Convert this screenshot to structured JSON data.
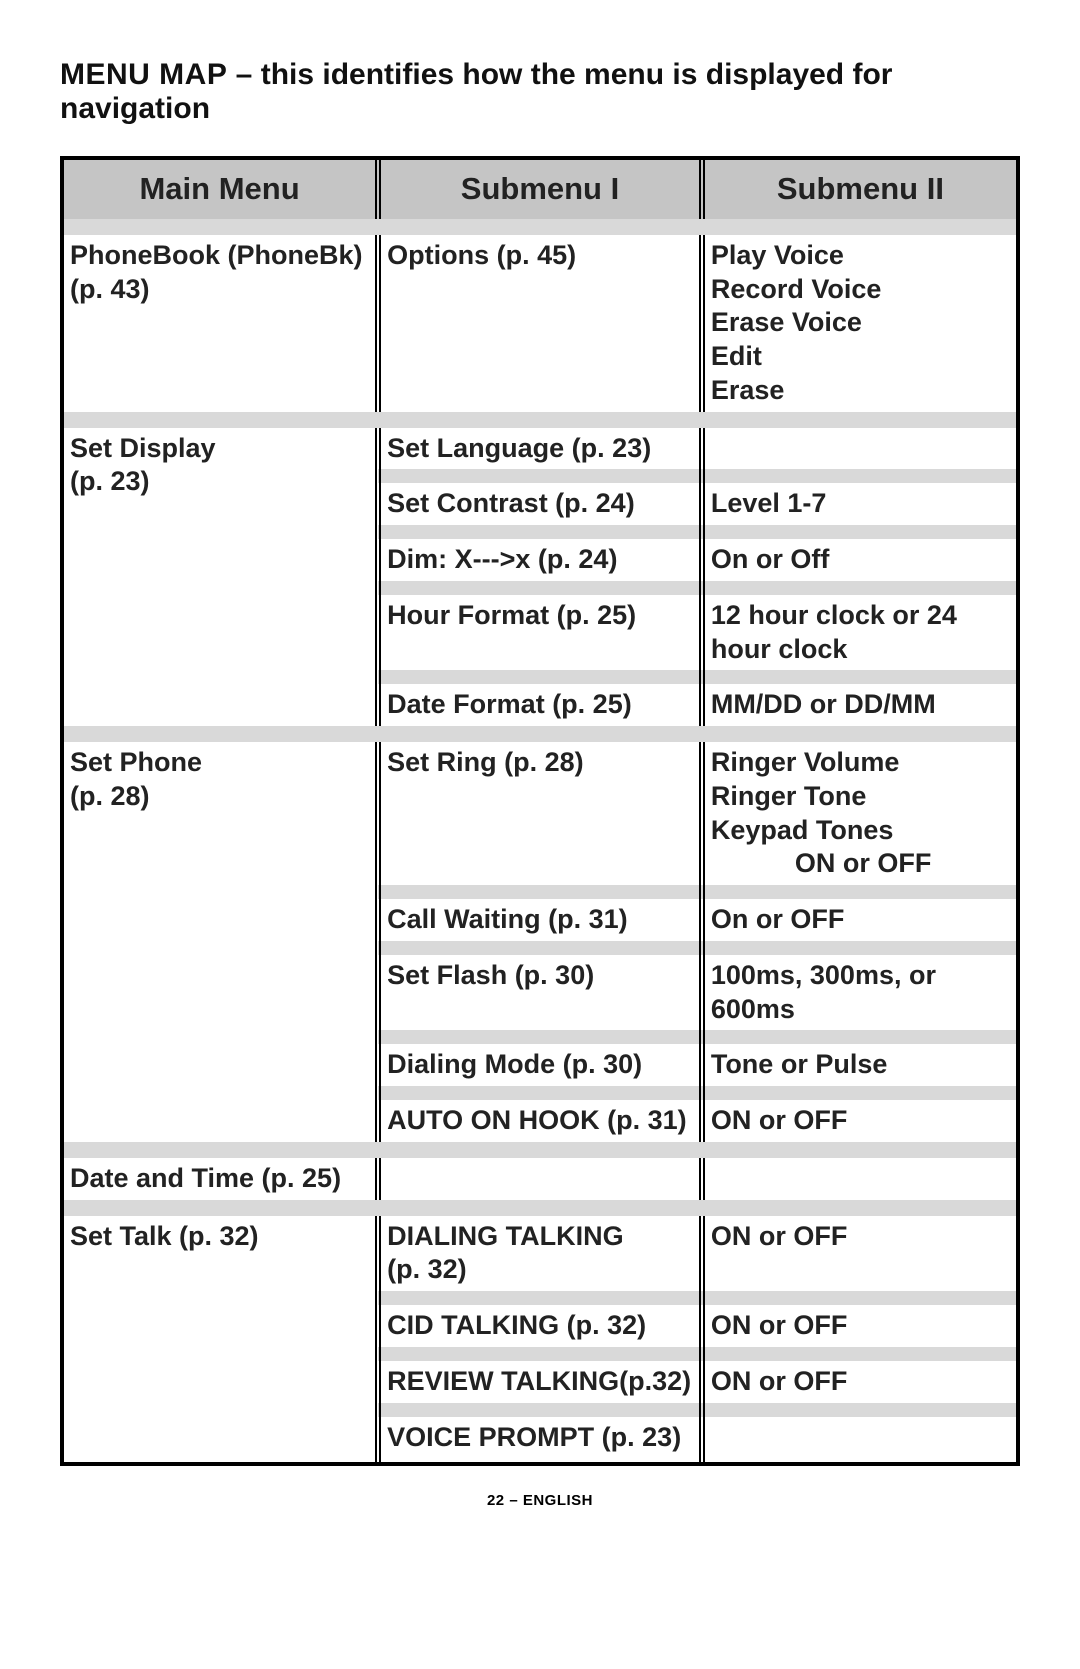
{
  "colors": {
    "header_bg": "#c5c5c5",
    "band_bg": "#d9d9d9",
    "border": "#000000",
    "text": "#222222",
    "page_bg": "#ffffff"
  },
  "heading": {
    "title": "MENU MAP",
    "dash": " – ",
    "subtitle": "this identifies how the menu is displayed for navigation"
  },
  "headers": {
    "main": "Main Menu",
    "sub1": "Submenu I",
    "sub2": "Submenu II"
  },
  "rows": {
    "phonebook_main": "PhoneBook (PhoneBk) (p. 43)",
    "phonebook_sub1": "Options (p. 45)",
    "phonebook_sub2": "Play Voice\nRecord Voice\nErase Voice\nEdit\nErase",
    "setdisplay_main": "Set Display\n(p. 23)",
    "setlanguage": "Set Language (p. 23)",
    "setcontrast": "Set Contrast (p. 24)",
    "setcontrast_sub2": "Level 1-7",
    "dim": "Dim: X--->x (p. 24)",
    "dim_sub2": "On or Off",
    "hourformat": "Hour Format (p. 25)",
    "hourformat_sub2": "12 hour clock or 24 hour clock",
    "dateformat": "Date Format (p. 25)",
    "dateformat_sub2": "MM/DD or DD/MM",
    "setphone_main": "Set Phone\n(p. 28)",
    "setring": "Set Ring (p. 28)",
    "setring_sub2_a": "Ringer Volume",
    "setring_sub2_b": "Ringer Tone",
    "setring_sub2_c": "Keypad Tones",
    "setring_sub2_d": "ON or OFF",
    "callwaiting": "Call Waiting (p. 31)",
    "callwaiting_sub2": "On or OFF",
    "setflash": "Set Flash (p. 30)",
    "setflash_sub2": "100ms, 300ms, or 600ms",
    "dialingmode": "Dialing Mode (p. 30)",
    "dialingmode_sub2": "Tone or Pulse",
    "autoonhook": "AUTO ON HOOK (p. 31)",
    "autoonhook_sub2": "ON or OFF",
    "datetime_main": "Date and Time (p. 25)",
    "settalk_main": "Set Talk (p. 32)",
    "dialingtalking": "DIALING TALKING\n(p. 32)",
    "dialingtalking_sub2": "ON or OFF",
    "cidtalking": "CID TALKING (p. 32)",
    "cidtalking_sub2": "ON or OFF",
    "reviewtalking": "REVIEW TALKING(p.32)",
    "reviewtalking_sub2": "ON or OFF",
    "voiceprompt": "VOICE PROMPT (p. 23)"
  },
  "footer": "22 – ENGLISH"
}
